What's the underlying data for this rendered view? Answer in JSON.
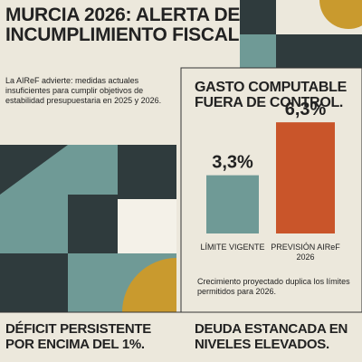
{
  "header": {
    "title": "MURCIA 2026: ALERTA DE INCUMPLIMIENTO FISCAL",
    "intro": "La AIReF advierte: medidas actuales insuficientes para cumplir objetivos de estabilidad presupuestaria en 2025 y 2026."
  },
  "chart_data": {
    "type": "bar",
    "title": "GASTO COMPUTABLE FUERA DE CONTROL.",
    "categories": [
      "LÍMITE VIGENTE",
      "PREVISIÓN AIReF 2026"
    ],
    "values": [
      3.3,
      6.3
    ],
    "value_labels": [
      "3,3%",
      "6,3%"
    ],
    "colors": [
      "#6f9a96",
      "#c9552a"
    ],
    "note": "Crecimiento proyectado duplica los límites permitidos para 2026."
  },
  "footer": {
    "left": "DÉFICIT PERSISTENTE POR ENCIMA DEL 1%.",
    "right": "DEUDA ESTANCADA EN NIVELES ELEVADOS."
  }
}
